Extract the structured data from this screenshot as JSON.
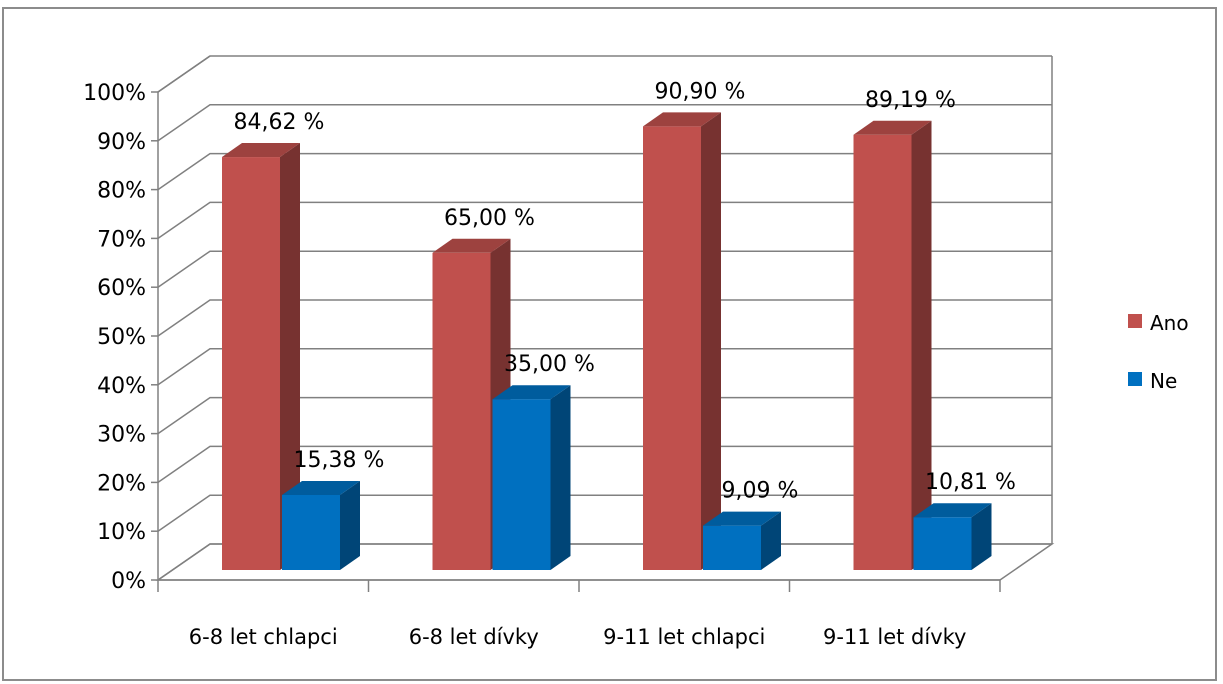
{
  "chart_data": {
    "type": "bar",
    "title": "",
    "xlabel": "",
    "ylabel": "",
    "ylim": [
      0,
      100
    ],
    "y_ticks": [
      "0%",
      "10%",
      "20%",
      "30%",
      "40%",
      "50%",
      "60%",
      "70%",
      "80%",
      "90%",
      "100%"
    ],
    "categories": [
      "6-8 let chlapci",
      "6-8 let dívky",
      "9-11 let chlapci",
      "9-11 let dívky"
    ],
    "series": [
      {
        "name": "Ano",
        "color": "#c0504d",
        "values": [
          84.62,
          65.0,
          90.9,
          89.19
        ],
        "labels": [
          "84,62 %",
          "65,00 %",
          "90,90 %",
          "89,19 %"
        ]
      },
      {
        "name": "Ne",
        "color": "#0070c0",
        "values": [
          15.38,
          35.0,
          9.09,
          10.81
        ],
        "labels": [
          "15,38 %",
          "35,00 %",
          "9,09 %",
          "10,81 %"
        ]
      }
    ],
    "grid": true,
    "legend_position": "right",
    "style": "3d-column"
  }
}
